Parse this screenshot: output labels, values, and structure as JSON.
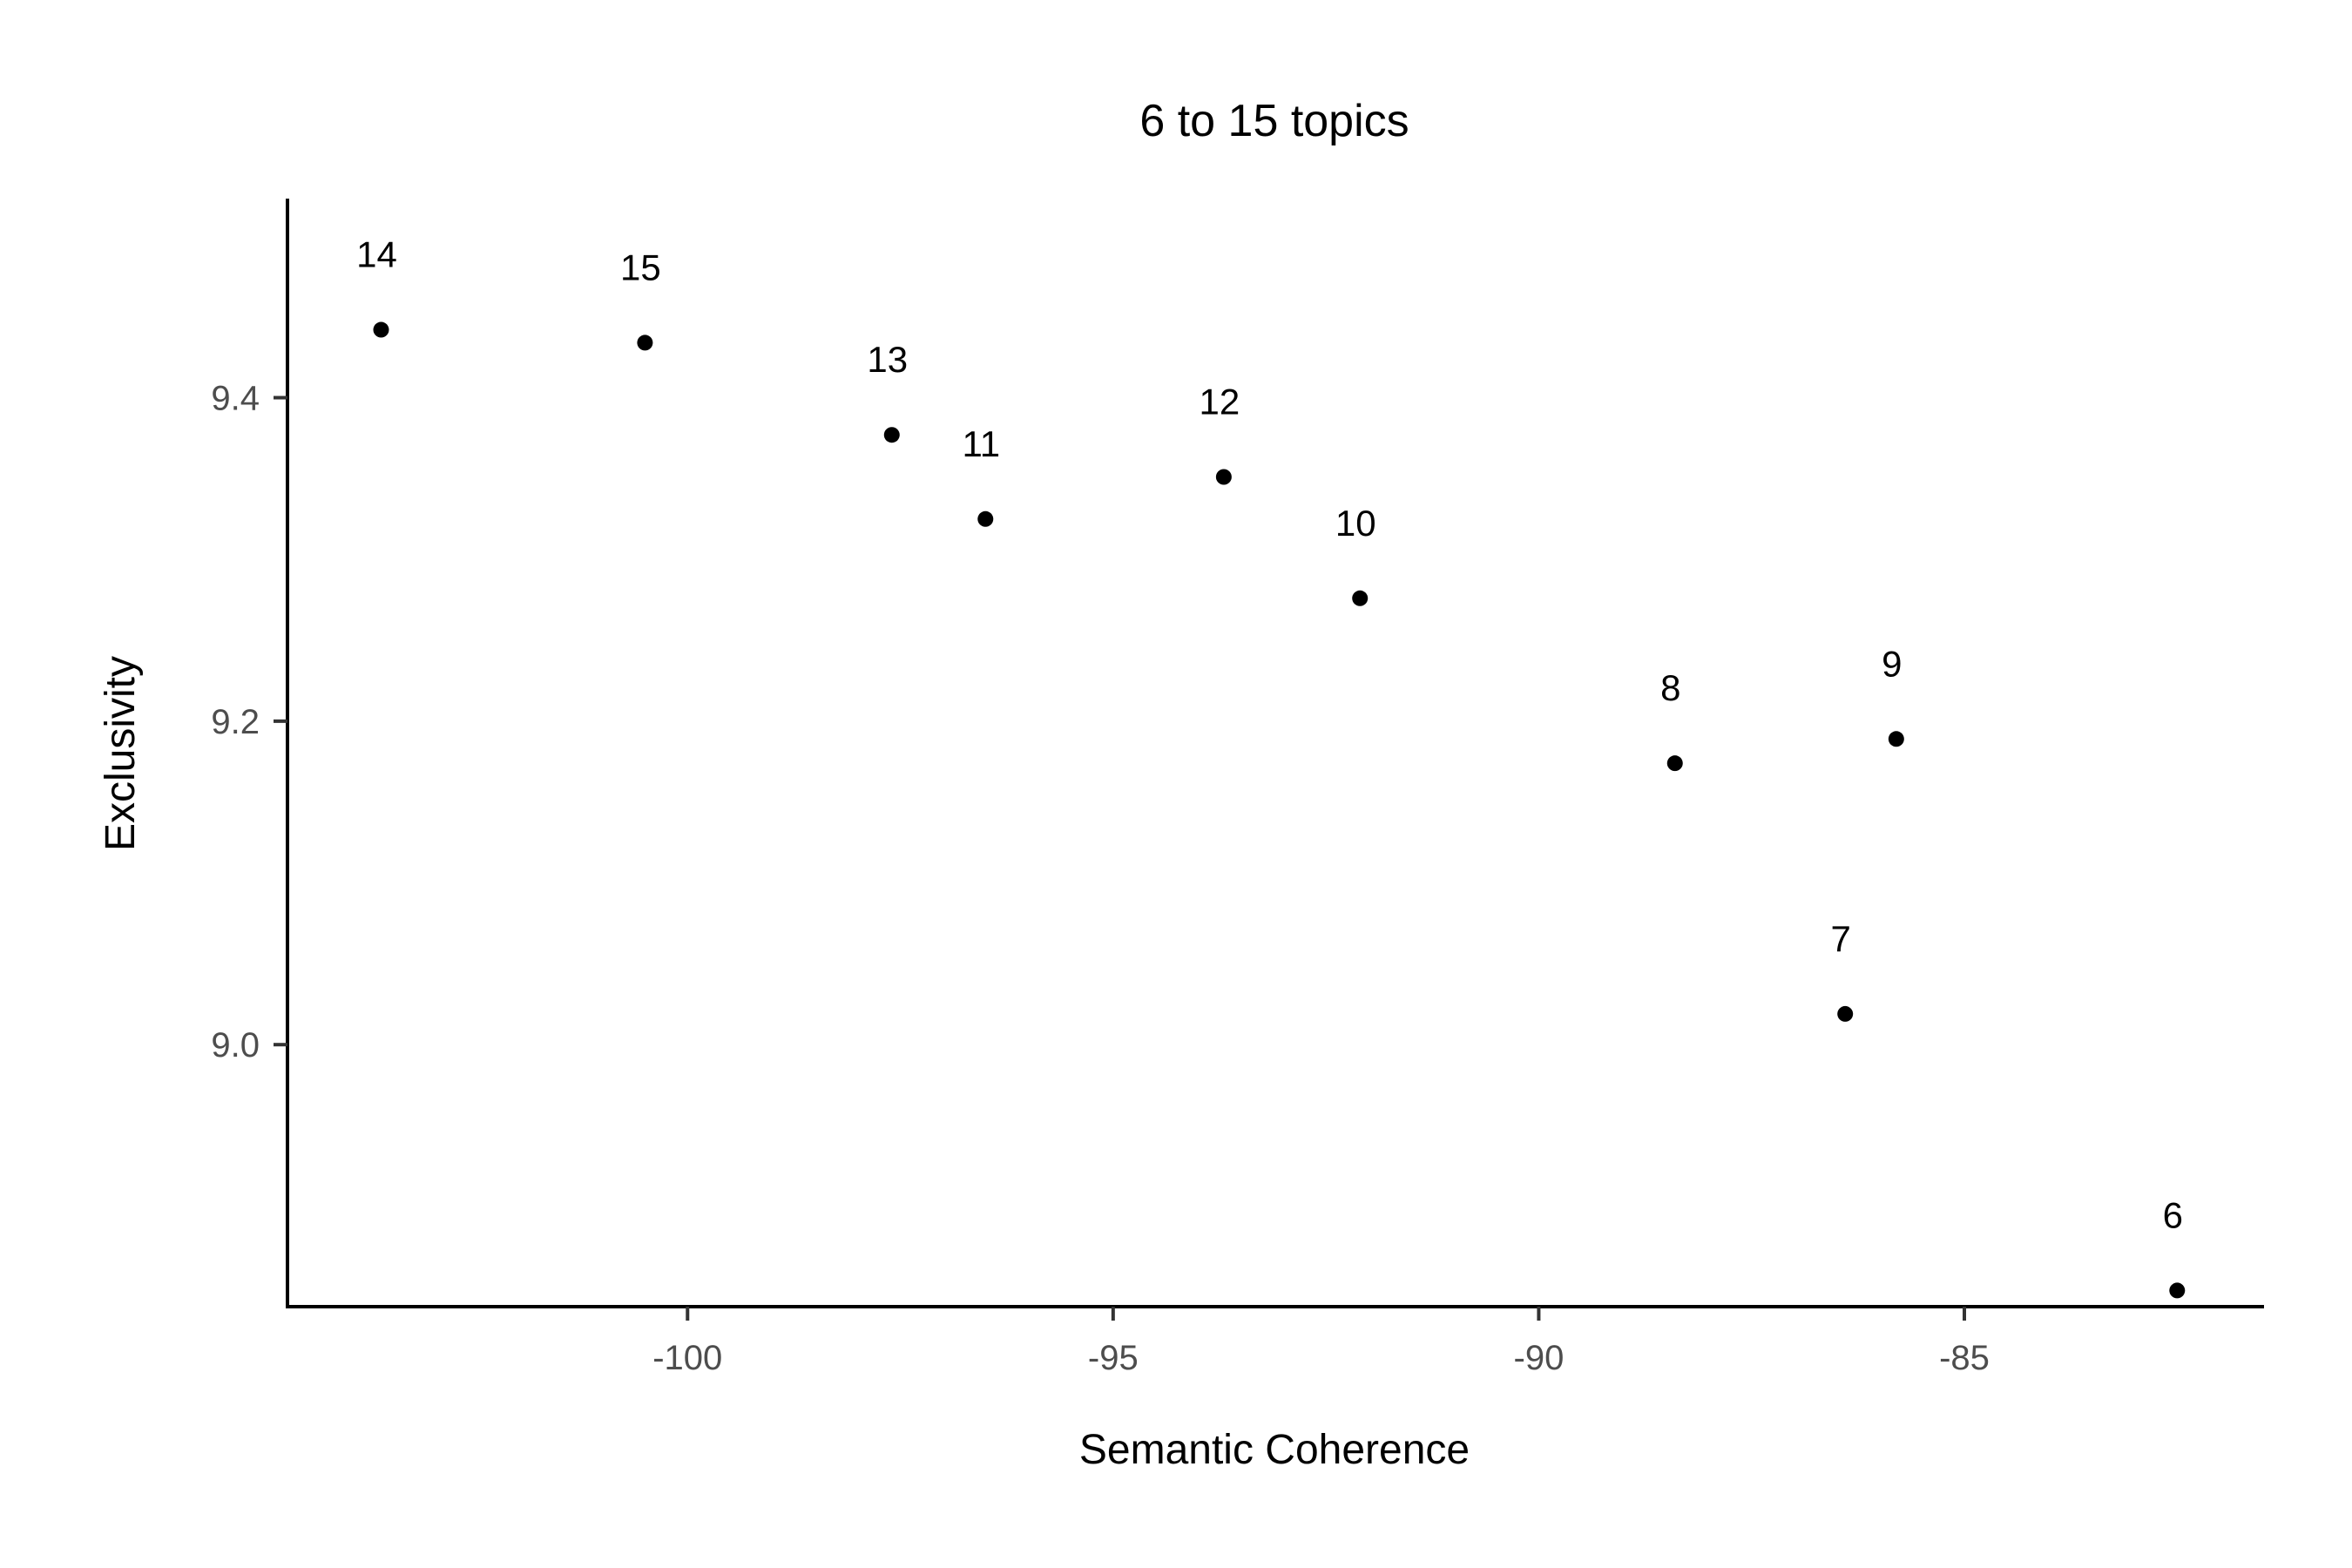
{
  "chart_data": {
    "type": "scatter",
    "title": "6 to 15 topics",
    "xlabel": "Semantic Coherence",
    "ylabel": "Exclusivity",
    "xlim": [
      -104.7,
      -81.5
    ],
    "ylim": [
      8.838,
      9.522
    ],
    "xticks": [
      -100,
      -95,
      -90,
      -85
    ],
    "xtick_labels": [
      "-100",
      "-95",
      "-90",
      "-85"
    ],
    "yticks": [
      9.0,
      9.2,
      9.4
    ],
    "ytick_labels": [
      "9.0",
      "9.2",
      "9.4"
    ],
    "grid": false,
    "legend": "none",
    "point_color": "#000000",
    "points": [
      {
        "label": "6",
        "x": -82.5,
        "y": 8.848
      },
      {
        "label": "7",
        "x": -86.4,
        "y": 9.019
      },
      {
        "label": "8",
        "x": -88.4,
        "y": 9.174
      },
      {
        "label": "9",
        "x": -85.8,
        "y": 9.189
      },
      {
        "label": "10",
        "x": -92.1,
        "y": 9.276
      },
      {
        "label": "11",
        "x": -96.5,
        "y": 9.325
      },
      {
        "label": "12",
        "x": -93.7,
        "y": 9.351
      },
      {
        "label": "13",
        "x": -97.6,
        "y": 9.377
      },
      {
        "label": "14",
        "x": -103.6,
        "y": 9.442
      },
      {
        "label": "15",
        "x": -100.5,
        "y": 9.434
      }
    ]
  }
}
